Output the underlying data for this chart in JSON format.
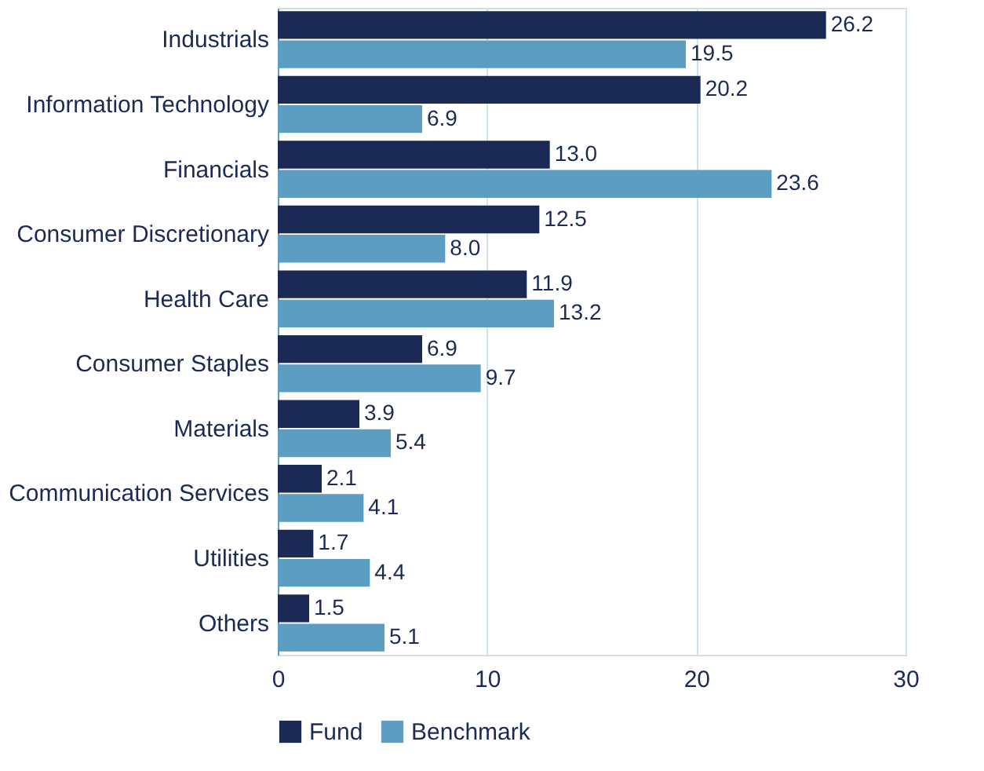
{
  "chart_data": {
    "type": "bar",
    "orientation": "horizontal",
    "categories": [
      "Industrials",
      "Information Technology",
      "Financials",
      "Consumer Discretionary",
      "Health Care",
      "Consumer Staples",
      "Materials",
      "Communication Services",
      "Utilities",
      "Others"
    ],
    "series": [
      {
        "name": "Fund",
        "color": "#1b2a55",
        "values": [
          26.2,
          20.2,
          13.0,
          12.5,
          11.9,
          6.9,
          3.9,
          2.1,
          1.7,
          1.5
        ],
        "value_labels": [
          "26.2",
          "20.2",
          "13.0",
          "12.5",
          "11.9",
          "6.9",
          "3.9",
          "2.1",
          "1.7",
          "1.5"
        ]
      },
      {
        "name": "Benchmark",
        "color": "#5b9ec2",
        "values": [
          19.5,
          6.9,
          23.6,
          8.0,
          13.2,
          9.7,
          5.4,
          4.1,
          4.4,
          5.1
        ],
        "value_labels": [
          "19.5",
          "6.9",
          "23.6",
          "8.0",
          "13.2",
          "9.7",
          "5.4",
          "4.1",
          "4.4",
          "5.1"
        ]
      }
    ],
    "xlim": [
      0,
      30
    ],
    "xticks": [
      0,
      10,
      20,
      30
    ],
    "grid": "x",
    "legend": "bottom"
  }
}
